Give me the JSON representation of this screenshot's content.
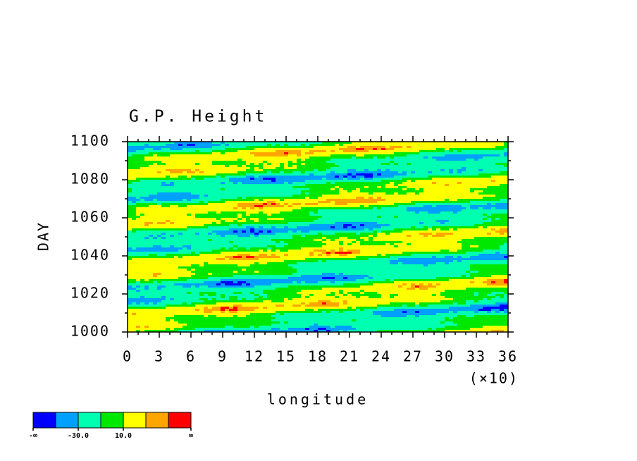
{
  "chart_data": {
    "type": "contour",
    "title": "G.P. Height",
    "xlabel": "longitude",
    "ylabel": "DAY",
    "xscale_note": "(×10)",
    "xlim": [
      0,
      36
    ],
    "xticks": [
      0,
      3,
      6,
      9,
      12,
      15,
      18,
      21,
      24,
      27,
      30,
      33,
      36
    ],
    "ylim": [
      1000,
      1100
    ],
    "yticks": [
      1000,
      1020,
      1040,
      1060,
      1080,
      1100
    ],
    "colorbar": {
      "colors": [
        "#0000ff",
        "#00a0ff",
        "#00ffb0",
        "#00e800",
        "#ffff00",
        "#ffa500",
        "#ff0000"
      ],
      "boundaries": [
        "-∞",
        null,
        "-30.0",
        null,
        "10.0",
        null,
        null,
        "∞"
      ]
    }
  }
}
